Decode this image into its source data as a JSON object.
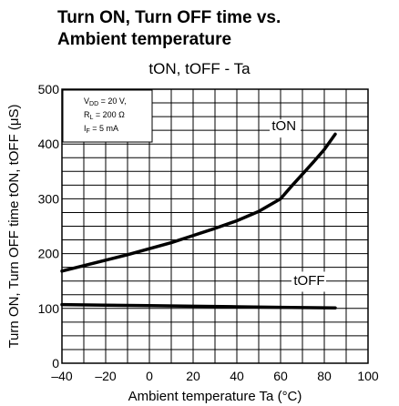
{
  "title_line1": "Turn ON, Turn OFF time vs.",
  "title_line2": "Ambient temperature",
  "subtitle": "tON, tOFF - Ta",
  "conditions": [
    "VDD = 20 V,",
    "RL = 200 Ω",
    "I F = 5 mA"
  ],
  "chart_data": {
    "type": "line",
    "xlabel": "Ambient temperature Ta (°C)",
    "ylabel": "Turn ON, Turn OFF time tON, tOFF (μS)",
    "xlim": [
      -40,
      100
    ],
    "ylim": [
      0,
      500
    ],
    "xticks": [
      -40,
      -20,
      0,
      20,
      40,
      60,
      80,
      100
    ],
    "xtick_labels": [
      "–40",
      "–20",
      "0",
      "20",
      "40",
      "60",
      "80",
      "100"
    ],
    "yticks": [
      0,
      100,
      200,
      300,
      400,
      500
    ],
    "grid": true,
    "series": [
      {
        "name": "tON",
        "x": [
          -40,
          -30,
          -20,
          -10,
          0,
          10,
          20,
          30,
          40,
          50,
          60,
          65,
          70,
          75,
          80,
          85
        ],
        "y": [
          168,
          178,
          188,
          198,
          209,
          220,
          233,
          246,
          260,
          277,
          300,
          323,
          345,
          367,
          390,
          418
        ]
      },
      {
        "name": "tOFF",
        "x": [
          -40,
          -20,
          0,
          20,
          40,
          60,
          85
        ],
        "y": [
          107,
          106,
          105,
          104,
          103,
          102,
          101
        ]
      }
    ]
  }
}
